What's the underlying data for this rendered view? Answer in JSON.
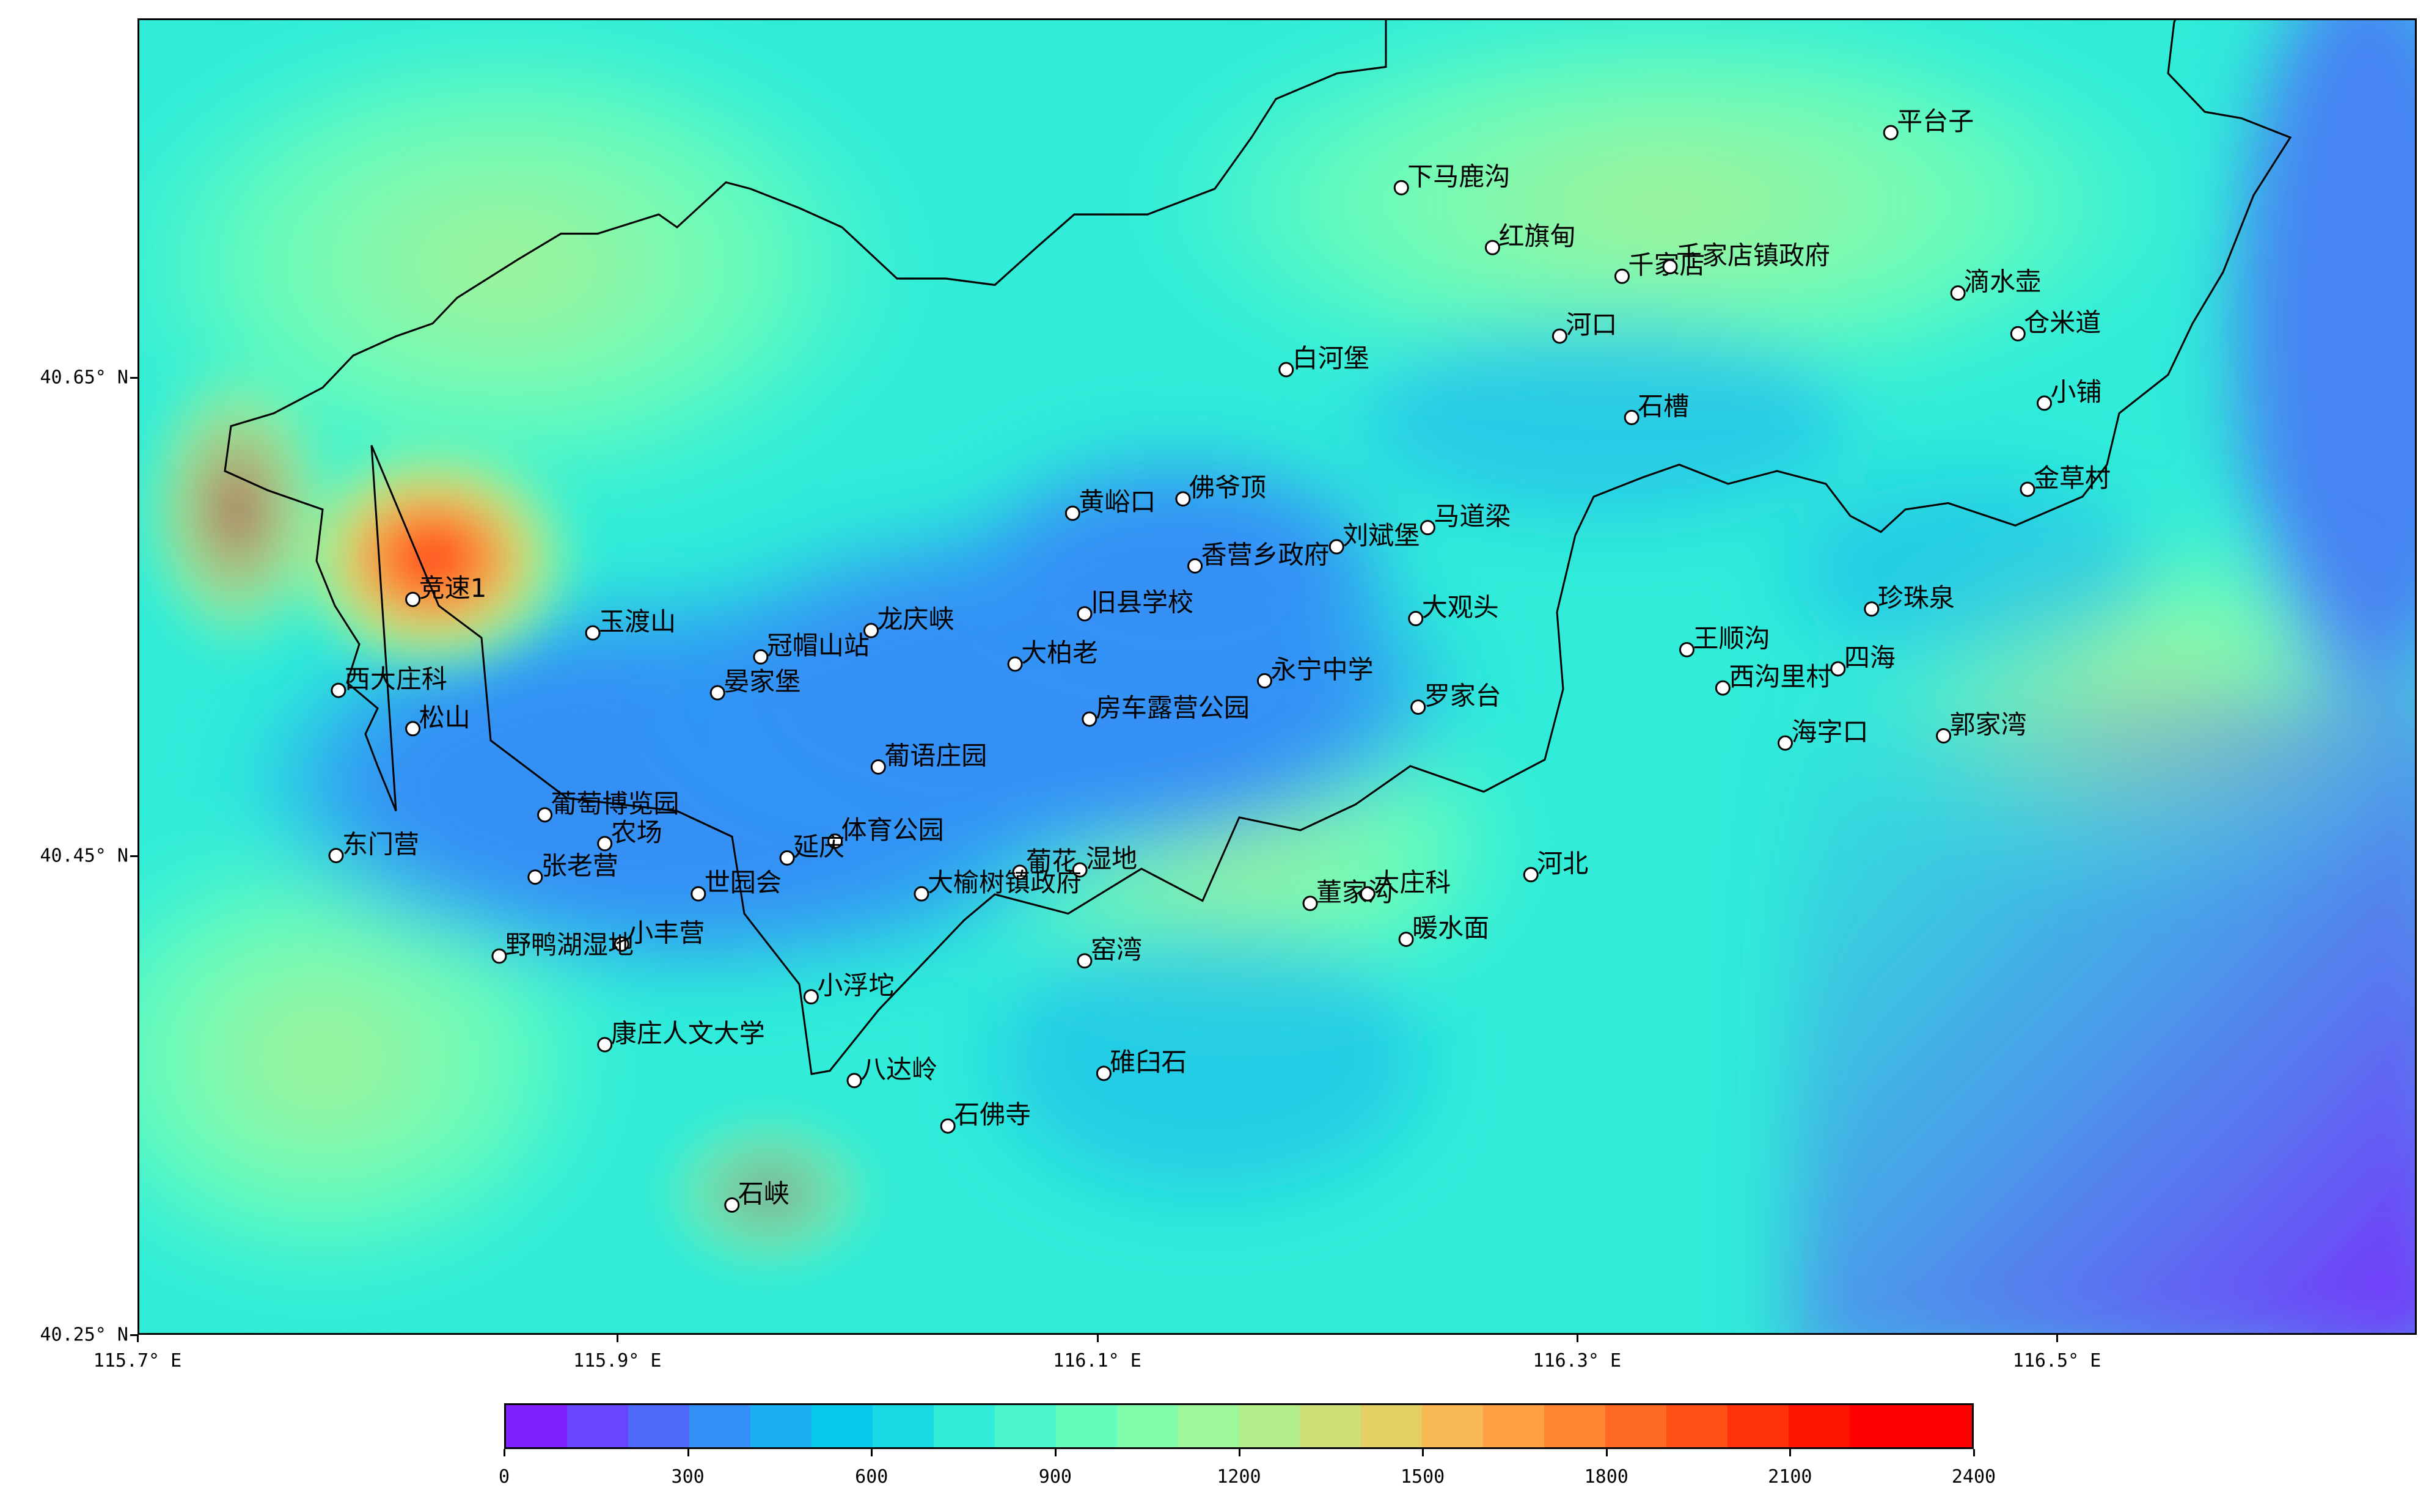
{
  "map": {
    "extent": {
      "lon_min": 115.7,
      "lon_max": 116.65,
      "lat_min": 40.25,
      "lat_max": 40.8
    },
    "x_ticks": [
      {
        "value": 115.7,
        "label": "115.7° E"
      },
      {
        "value": 115.9,
        "label": "115.9° E"
      },
      {
        "value": 116.1,
        "label": "116.1° E"
      },
      {
        "value": 116.3,
        "label": "116.3° E"
      },
      {
        "value": 116.5,
        "label": "116.5° E"
      }
    ],
    "y_ticks": [
      {
        "value": 40.25,
        "label": "40.25° N"
      },
      {
        "value": 40.45,
        "label": "40.45° N"
      },
      {
        "value": 40.65,
        "label": "40.65° N"
      }
    ],
    "stations": [
      {
        "name": "平台子",
        "lon": 116.43,
        "lat": 40.753
      },
      {
        "name": "下马鹿沟",
        "lon": 116.226,
        "lat": 40.73
      },
      {
        "name": "红旗甸",
        "lon": 116.264,
        "lat": 40.705
      },
      {
        "name": "千家店",
        "lon": 116.318,
        "lat": 40.693
      },
      {
        "name": "千家店镇政府",
        "lon": 116.338,
        "lat": 40.697
      },
      {
        "name": "滴水壶",
        "lon": 116.458,
        "lat": 40.686
      },
      {
        "name": "仓米道",
        "lon": 116.483,
        "lat": 40.669
      },
      {
        "name": "河口",
        "lon": 116.292,
        "lat": 40.668
      },
      {
        "name": "白河堡",
        "lon": 116.178,
        "lat": 40.654
      },
      {
        "name": "小铺",
        "lon": 116.494,
        "lat": 40.64
      },
      {
        "name": "石槽",
        "lon": 116.322,
        "lat": 40.634
      },
      {
        "name": "金草村",
        "lon": 116.487,
        "lat": 40.604
      },
      {
        "name": "佛爷顶",
        "lon": 116.135,
        "lat": 40.6
      },
      {
        "name": "黄峪口",
        "lon": 116.089,
        "lat": 40.594
      },
      {
        "name": "马道梁",
        "lon": 116.237,
        "lat": 40.588
      },
      {
        "name": "刘斌堡",
        "lon": 116.199,
        "lat": 40.58
      },
      {
        "name": "香营乡政府",
        "lon": 116.14,
        "lat": 40.572
      },
      {
        "name": "竞速1",
        "lon": 115.814,
        "lat": 40.558
      },
      {
        "name": "珍珠泉",
        "lon": 116.422,
        "lat": 40.554
      },
      {
        "name": "旧县学校",
        "lon": 116.094,
        "lat": 40.552
      },
      {
        "name": "大观头",
        "lon": 116.232,
        "lat": 40.55
      },
      {
        "name": "龙庆峡",
        "lon": 116.005,
        "lat": 40.545
      },
      {
        "name": "玉渡山",
        "lon": 115.889,
        "lat": 40.544
      },
      {
        "name": "王顺沟",
        "lon": 116.345,
        "lat": 40.537
      },
      {
        "name": "冠帽山站",
        "lon": 115.959,
        "lat": 40.534
      },
      {
        "name": "大柏老",
        "lon": 116.065,
        "lat": 40.531
      },
      {
        "name": "四海",
        "lon": 116.408,
        "lat": 40.529
      },
      {
        "name": "永宁中学",
        "lon": 116.169,
        "lat": 40.524
      },
      {
        "name": "西沟里村",
        "lon": 116.36,
        "lat": 40.521
      },
      {
        "name": "西大庄科",
        "lon": 115.783,
        "lat": 40.52
      },
      {
        "name": "晏家堡",
        "lon": 115.941,
        "lat": 40.519
      },
      {
        "name": "罗家台",
        "lon": 116.233,
        "lat": 40.513
      },
      {
        "name": "房车露营公园",
        "lon": 116.096,
        "lat": 40.508
      },
      {
        "name": "松山",
        "lon": 115.814,
        "lat": 40.504
      },
      {
        "name": "郭家湾",
        "lon": 116.452,
        "lat": 40.501
      },
      {
        "name": "海字口",
        "lon": 116.386,
        "lat": 40.498
      },
      {
        "name": "葡语庄园",
        "lon": 116.008,
        "lat": 40.488
      },
      {
        "name": "葡萄博览园",
        "lon": 115.869,
        "lat": 40.468
      },
      {
        "name": "体育公园",
        "lon": 115.99,
        "lat": 40.457
      },
      {
        "name": "农场",
        "lon": 115.894,
        "lat": 40.456
      },
      {
        "name": "东门营",
        "lon": 115.782,
        "lat": 40.451
      },
      {
        "name": "延庆",
        "lon": 115.97,
        "lat": 40.45
      },
      {
        "name": "葡花",
        "lon": 116.067,
        "lat": 40.444
      },
      {
        "name": "湿地",
        "lon": 116.092,
        "lat": 40.445
      },
      {
        "name": "河北",
        "lon": 116.28,
        "lat": 40.443
      },
      {
        "name": "张老营",
        "lon": 115.865,
        "lat": 40.442
      },
      {
        "name": "世园会",
        "lon": 115.933,
        "lat": 40.435
      },
      {
        "name": "大榆树镇政府",
        "lon": 116.026,
        "lat": 40.435
      },
      {
        "name": "大庄科",
        "lon": 116.212,
        "lat": 40.435
      },
      {
        "name": "董家沟",
        "lon": 116.188,
        "lat": 40.431
      },
      {
        "name": "暖水面",
        "lon": 116.228,
        "lat": 40.416
      },
      {
        "name": "小丰营",
        "lon": 115.901,
        "lat": 40.414
      },
      {
        "name": "野鸭湖湿地",
        "lon": 115.85,
        "lat": 40.409
      },
      {
        "name": "窑湾",
        "lon": 116.094,
        "lat": 40.407
      },
      {
        "name": "小浮坨",
        "lon": 115.98,
        "lat": 40.392
      },
      {
        "name": "康庄人文大学",
        "lon": 115.894,
        "lat": 40.372
      },
      {
        "name": "碓臼石",
        "lon": 116.102,
        "lat": 40.36
      },
      {
        "name": "八达岭",
        "lon": 115.998,
        "lat": 40.357
      },
      {
        "name": "石佛寺",
        "lon": 116.037,
        "lat": 40.338
      },
      {
        "name": "石峡",
        "lon": 115.947,
        "lat": 40.305
      }
    ]
  },
  "colorbar": {
    "min": 0,
    "max": 2400,
    "step": 100,
    "tick_labels": [
      "0",
      "300",
      "600",
      "900",
      "1200",
      "1500",
      "1800",
      "2100",
      "2400"
    ],
    "colors": [
      "#7f20fe",
      "#6746fd",
      "#4e6afa",
      "#3490f6",
      "#1caef2",
      "#08c8ec",
      "#1ad9e4",
      "#30ecd9",
      "#4cf6cc",
      "#66fcbc",
      "#80feac",
      "#9cf89b",
      "#b2ee8a",
      "#cce077",
      "#e2d065",
      "#f8b853",
      "#ffa043",
      "#ff8733",
      "#ff6a23",
      "#ff4f14",
      "#ff3109",
      "#ff1402",
      "#ff0000",
      "#ff0000"
    ]
  }
}
